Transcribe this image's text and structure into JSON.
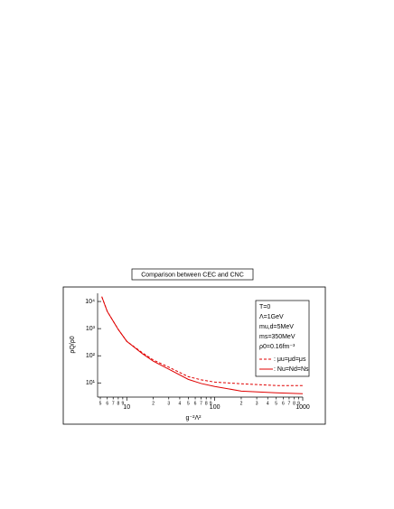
{
  "chart_data": {
    "type": "line",
    "title": "Comparison between CEC and CNC",
    "x_label": "g⁻²Λ²",
    "y_label": "ρQ/ρ0",
    "log_x": true,
    "log_y": true,
    "annotations": [
      "T=0",
      "Λ=1GeV",
      "mu,d=5MeV",
      "ms=350MeV",
      "ρ0=0.16fm⁻³"
    ],
    "x": [
      5.2,
      6,
      8,
      10,
      15,
      20,
      30,
      50,
      70,
      100,
      200,
      500,
      1000
    ],
    "series": [
      {
        "name": ": μu=μd=μs",
        "color": "#e00000",
        "dash": true,
        "values": [
          15000,
          4300,
          930,
          340,
          130,
          70,
          38,
          17,
          13,
          10.7,
          9.3,
          8,
          8
        ]
      },
      {
        "name": ": Nu=Nd=Ns",
        "color": "#e00000",
        "dash": false,
        "values": [
          15000,
          4300,
          930,
          340,
          120,
          63,
          32,
          13.5,
          9.5,
          7.4,
          5,
          4.3,
          4
        ]
      }
    ],
    "xlim": [
      5,
      1000
    ],
    "ylim": [
      3,
      20000
    ],
    "xticks": [
      {
        "value": 5,
        "label": "5"
      },
      {
        "value": 6,
        "label": "6"
      },
      {
        "value": 7,
        "label": "7"
      },
      {
        "value": 8,
        "label": "8"
      },
      {
        "value": 9,
        "label": "9"
      },
      10,
      {
        "value": 20,
        "label": "2"
      },
      {
        "value": 30,
        "label": "3"
      },
      {
        "value": 40,
        "label": "4"
      },
      {
        "value": 50,
        "label": "5"
      },
      {
        "value": 60,
        "label": "6"
      },
      {
        "value": 70,
        "label": "7"
      },
      {
        "value": 80,
        "label": "8"
      },
      {
        "value": 90,
        "label": "9"
      },
      100,
      {
        "value": 200,
        "label": "2"
      },
      {
        "value": 300,
        "label": "3"
      },
      {
        "value": 400,
        "label": "4"
      },
      {
        "value": 500,
        "label": "5"
      },
      {
        "value": 600,
        "label": "6"
      },
      {
        "value": 700,
        "label": "7"
      },
      {
        "value": 800,
        "label": "8"
      },
      {
        "value": 900,
        "label": "9"
      },
      1000
    ],
    "yticks": [
      {
        "value": 10,
        "label": "10¹"
      },
      {
        "value": 100,
        "label": "10²"
      },
      {
        "value": 1000,
        "label": "10³"
      },
      {
        "value": 10000,
        "label": "10⁴"
      }
    ],
    "legend": "top-right"
  }
}
